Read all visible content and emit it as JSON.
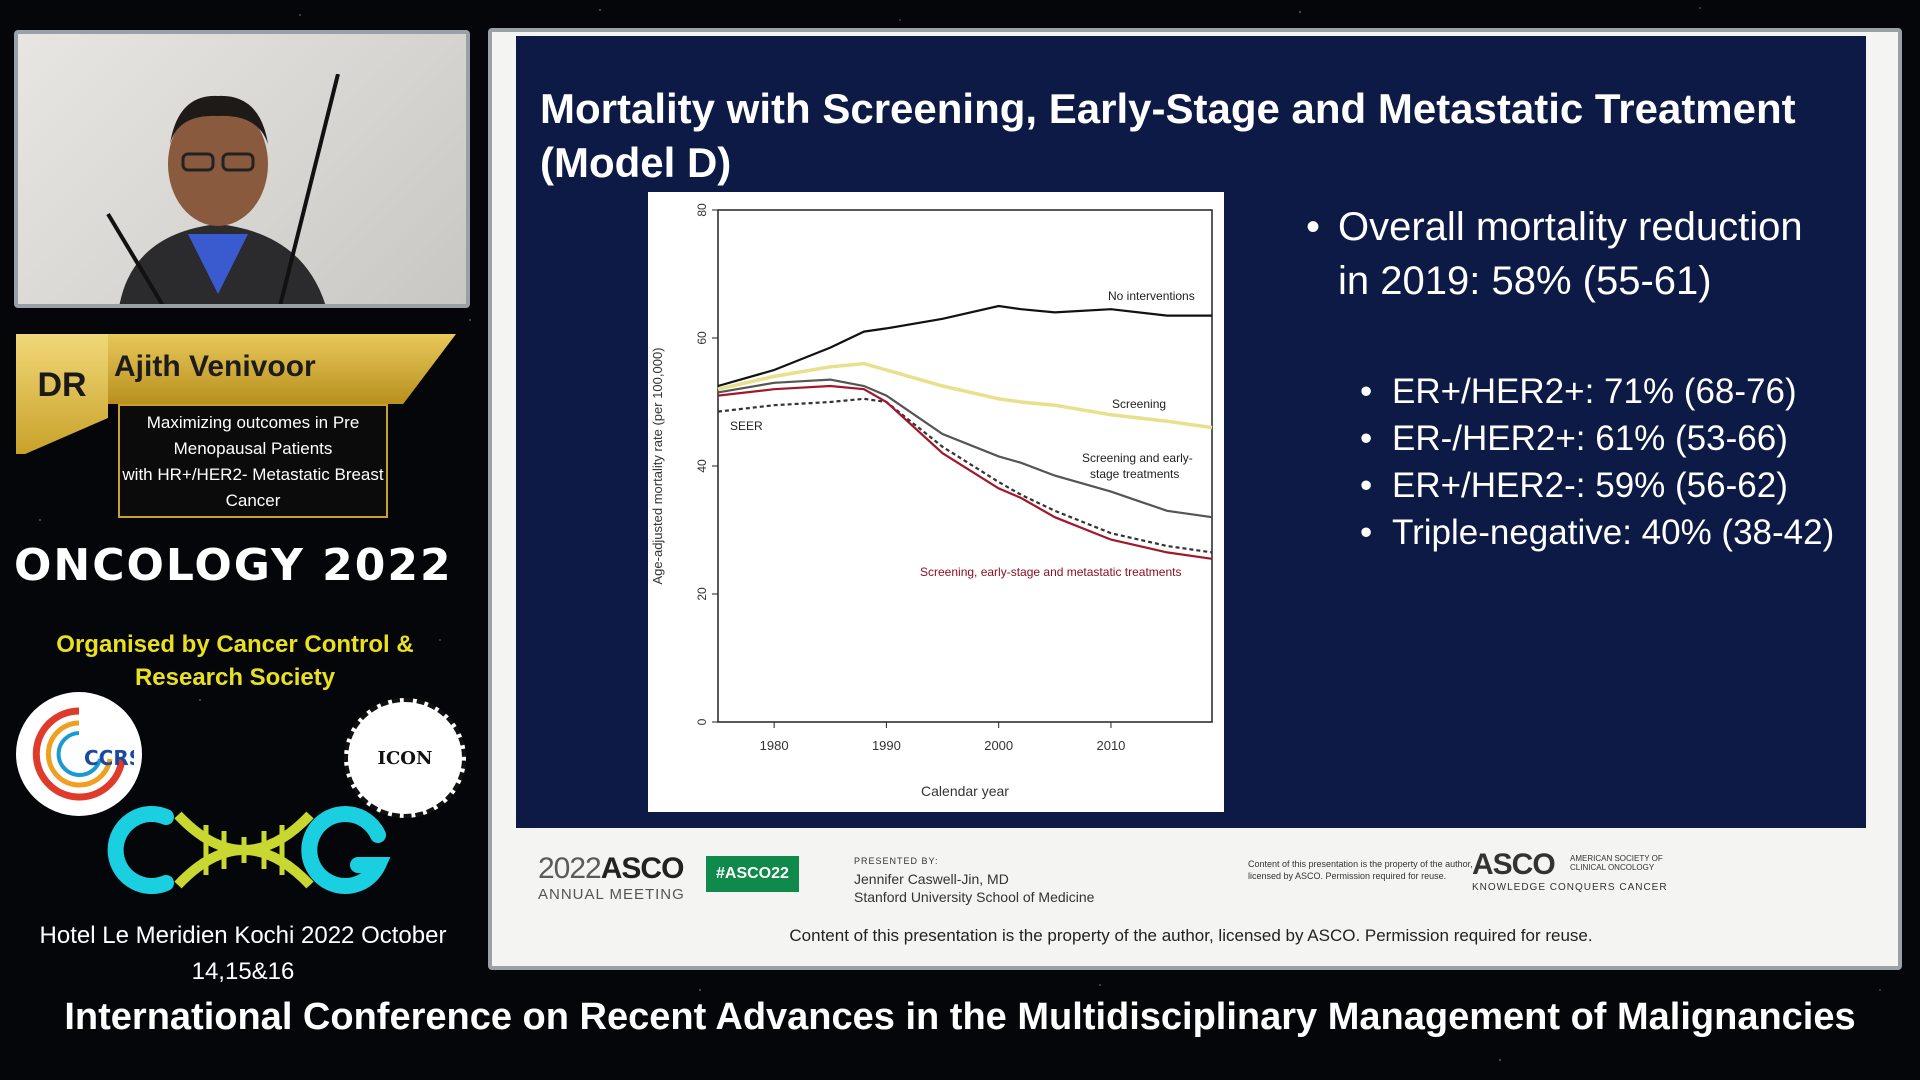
{
  "speaker": {
    "prefix": "DR",
    "name": "Ajith Venivoor",
    "topic_lines": [
      "Maximizing outcomes in Pre",
      "Menopausal Patients",
      "with HR+/HER2- Metastatic Breast",
      "Cancer"
    ]
  },
  "event": {
    "name": "ONCOLOGY 2022",
    "organised_line1": "Organised by   Cancer Control &",
    "organised_line2": "Research Society",
    "logo_left": "CCRS",
    "logo_right": "ICON",
    "logo_main": "CMG",
    "venue_line1": "Hotel Le Meridien  Kochi  2022 October",
    "venue_line2": "14,15&16",
    "banner": "International Conference on Recent Advances in the Multidisciplinary Management of Malignancies"
  },
  "slide": {
    "title_line1": "Mortality with Screening, Early-Stage and Metastatic Treatment",
    "title_line2": "(Model D)",
    "bullet_main_line1": "Overall mortality reduction",
    "bullet_main_line2": "in 2019: 58% (55-61)",
    "sub_bullets": [
      "ER+/HER2+: 71% (68-76)",
      "ER-/HER2+: 61% (53-66)",
      "ER+/HER2-: 59% (56-62)",
      "Triple-negative: 40% (38-42)"
    ],
    "footer": {
      "asco_year": "2022",
      "asco_name": "ASCO",
      "asco_sub": "ANNUAL MEETING",
      "hashtag": "#ASCO22",
      "presented_label": "PRESENTED BY:",
      "presenter": "Jennifer Caswell-Jin, MD",
      "affiliation": "Stanford University  School of Medicine",
      "content_small": "Content of this presentation is the property of the author, licensed by ASCO. Permission required for reuse.",
      "asco_right": "ASCO",
      "asco_right_tiny": "AMERICAN SOCIETY OF CLINICAL ONCOLOGY",
      "asco_right_tag": "KNOWLEDGE CONQUERS CANCER",
      "note": "Content of this presentation is the property of the author, licensed by ASCO. Permission required for reuse."
    }
  },
  "chart_data": {
    "type": "line",
    "title": "",
    "xlabel": "Calendar year",
    "ylabel": "Age-adjusted mortality rate (per 100,000)",
    "xlim": [
      1975,
      2019
    ],
    "ylim": [
      0,
      80
    ],
    "xticks": [
      "1980",
      "1990",
      "2000",
      "2010"
    ],
    "yticks": [
      "0",
      "20",
      "40",
      "60",
      "80"
    ],
    "x": [
      1975,
      1980,
      1985,
      1988,
      1990,
      1995,
      2000,
      2002,
      2005,
      2010,
      2015,
      2019
    ],
    "series": [
      {
        "name": "No interventions",
        "color": "#111111",
        "dash": "",
        "values": [
          52.5,
          55,
          58.5,
          61,
          61.5,
          63,
          65,
          64.5,
          64,
          64.5,
          63.5,
          63.5
        ]
      },
      {
        "name": "Screening",
        "color": "#e8e08a",
        "dash": "",
        "values": [
          52,
          54,
          55.5,
          56,
          55,
          52.5,
          50.5,
          50,
          49.5,
          48,
          47,
          46
        ]
      },
      {
        "name": "Screening and early-stage treatments",
        "color": "#555555",
        "dash": "",
        "values": [
          51.5,
          53,
          53.5,
          52.5,
          51,
          45,
          41.5,
          40.5,
          38.5,
          36,
          33,
          32
        ]
      },
      {
        "name": "SEER",
        "color": "#333333",
        "dash": "4,3",
        "values": [
          48.5,
          49.5,
          50,
          50.5,
          50,
          43,
          37.5,
          35.5,
          33,
          29.5,
          27.5,
          26.5
        ]
      },
      {
        "name": "Screening, early-stage and metastatic treatments",
        "color": "#a0182a",
        "dash": "",
        "values": [
          51,
          52,
          52.5,
          52,
          50,
          42,
          36.5,
          35,
          32,
          28.5,
          26.5,
          25.5
        ]
      }
    ],
    "labels": {
      "no_interventions": "No interventions",
      "screening": "Screening",
      "early_line1": "Screening and early-",
      "early_line2": "stage treatments",
      "seer": "SEER",
      "metastatic": "Screening, early-stage and metastatic treatments"
    }
  }
}
